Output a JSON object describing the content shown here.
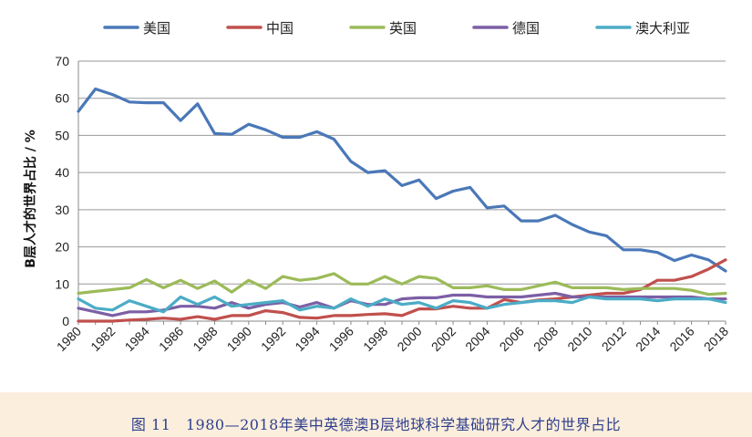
{
  "caption": "图 11　1980—2018年美中英德澳B层地球科学基础研究人才的世界占比",
  "chart_data": {
    "type": "line",
    "title": "",
    "xlabel": "",
    "ylabel": "B层人才的世界占比 / %",
    "ylim": [
      0,
      70
    ],
    "yticks": [
      0,
      10,
      20,
      30,
      40,
      50,
      60,
      70
    ],
    "xlim": [
      1980,
      2018
    ],
    "xtick_labels": [
      "1980",
      "1982",
      "1984",
      "1986",
      "1988",
      "1990",
      "1992",
      "1994",
      "1996",
      "1998",
      "2000",
      "2002",
      "2004",
      "2006",
      "2008",
      "2010",
      "2012",
      "2014",
      "2016",
      "2018"
    ],
    "legend_position": "top",
    "grid": "horizontal",
    "x": [
      1980,
      1981,
      1982,
      1983,
      1984,
      1985,
      1986,
      1987,
      1988,
      1989,
      1990,
      1991,
      1992,
      1993,
      1994,
      1995,
      1996,
      1997,
      1998,
      1999,
      2000,
      2001,
      2002,
      2003,
      2004,
      2005,
      2006,
      2007,
      2008,
      2009,
      2010,
      2011,
      2012,
      2013,
      2014,
      2015,
      2016,
      2017,
      2018
    ],
    "series": [
      {
        "name": "美国",
        "color": "#4a78b8",
        "values": [
          56.5,
          62.5,
          61.0,
          59.0,
          58.8,
          58.8,
          54.0,
          58.5,
          50.5,
          50.3,
          53.0,
          51.5,
          49.5,
          49.5,
          51.0,
          49.0,
          43.0,
          40.0,
          40.5,
          36.5,
          38.0,
          33.0,
          35.0,
          36.0,
          30.5,
          31.0,
          27.0,
          27.0,
          28.5,
          26.0,
          24.0,
          23.0,
          19.2,
          19.2,
          18.5,
          16.3,
          17.8,
          16.5,
          13.5
        ]
      },
      {
        "name": "中国",
        "color": "#c0504d",
        "values": [
          0,
          0,
          0,
          0.3,
          0.5,
          0.8,
          0.5,
          1.2,
          0.5,
          1.5,
          1.5,
          2.8,
          2.3,
          1.0,
          0.8,
          1.5,
          1.5,
          1.8,
          2.0,
          1.5,
          3.3,
          3.3,
          4.0,
          3.5,
          3.5,
          5.8,
          5.0,
          5.7,
          6.0,
          6.5,
          7.0,
          7.5,
          7.5,
          8.5,
          11.0,
          11.0,
          12.0,
          14.0,
          16.5
        ]
      },
      {
        "name": "英国",
        "color": "#9bbb59",
        "values": [
          7.5,
          8.0,
          8.5,
          9.0,
          11.2,
          9.0,
          11.0,
          8.8,
          10.8,
          7.8,
          11.0,
          8.8,
          12.0,
          11.0,
          11.5,
          12.8,
          10.0,
          10.0,
          12.0,
          10.0,
          12.0,
          11.5,
          9.0,
          9.0,
          9.5,
          8.5,
          8.5,
          9.5,
          10.5,
          9.0,
          9.0,
          9.0,
          8.5,
          8.8,
          8.8,
          8.8,
          8.3,
          7.2,
          7.5
        ]
      },
      {
        "name": "德国",
        "color": "#7c5fa5",
        "values": [
          3.5,
          2.5,
          1.5,
          2.5,
          2.5,
          3.0,
          4.0,
          4.0,
          3.5,
          5.0,
          3.5,
          4.5,
          5.0,
          3.8,
          5.0,
          3.5,
          5.5,
          4.5,
          4.5,
          6.0,
          6.3,
          6.3,
          7.0,
          7.0,
          6.5,
          6.5,
          6.5,
          7.0,
          7.5,
          6.5,
          6.5,
          6.5,
          6.5,
          6.5,
          6.5,
          6.5,
          6.5,
          6.0,
          6.0
        ]
      },
      {
        "name": "澳大利亚",
        "color": "#4bacc6",
        "values": [
          6.0,
          3.5,
          3.0,
          5.5,
          4.0,
          2.5,
          6.5,
          4.5,
          6.5,
          4.0,
          4.5,
          5.0,
          5.5,
          3.0,
          4.0,
          3.5,
          6.0,
          4.0,
          6.0,
          4.5,
          5.0,
          3.5,
          5.5,
          5.0,
          3.5,
          4.5,
          5.0,
          5.5,
          5.5,
          5.0,
          6.5,
          6.0,
          6.0,
          6.0,
          5.5,
          6.0,
          6.0,
          6.0,
          5.0
        ]
      }
    ]
  }
}
